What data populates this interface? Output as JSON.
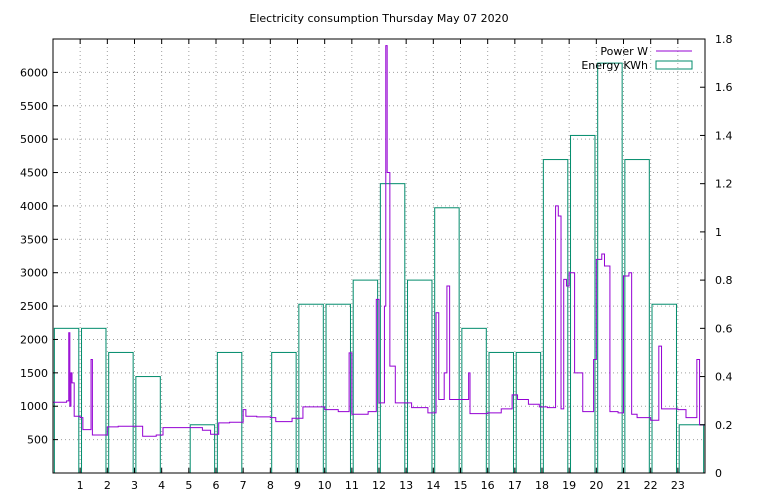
{
  "chart_data": {
    "type": "bar+line",
    "title": "Electricity consumption Thursday May 07 2020",
    "grid": true,
    "legend_position": "top-right",
    "x_axis": {
      "range": [
        0,
        24
      ],
      "ticks": [
        "1",
        "2",
        "3",
        "4",
        "5",
        "6",
        "7",
        "8",
        "9",
        "10",
        "11",
        "12",
        "13",
        "14",
        "15",
        "16",
        "17",
        "18",
        "19",
        "20",
        "21",
        "22",
        "23"
      ]
    },
    "y_left": {
      "range": [
        0,
        6500
      ],
      "ticks": [
        500,
        1000,
        1500,
        2000,
        2500,
        3000,
        3500,
        4000,
        4500,
        5000,
        5500,
        6000
      ],
      "tick_labels": [
        "500",
        "1000",
        "1500",
        "2000",
        "2500",
        "3000",
        "3500",
        "4000",
        "4500",
        "5000",
        "5500",
        "6000"
      ]
    },
    "y_right": {
      "range": [
        0,
        1.8
      ],
      "ticks": [
        0,
        0.2,
        0.4,
        0.6,
        0.8,
        1,
        1.2,
        1.4,
        1.6,
        1.8
      ],
      "tick_labels": [
        "0",
        "0.2",
        "0.4",
        "0.6",
        "0.8",
        "1",
        "1.2",
        "1.4",
        "1.6",
        "1.8"
      ]
    },
    "series": [
      {
        "name": "Power W",
        "axis": "left",
        "color": "#9400d3",
        "style": "steps",
        "points": [
          [
            0,
            1060
          ],
          [
            0.5,
            1080
          ],
          [
            0.58,
            2100
          ],
          [
            0.62,
            1000
          ],
          [
            0.66,
            1500
          ],
          [
            0.7,
            1350
          ],
          [
            0.78,
            850
          ],
          [
            1.0,
            830
          ],
          [
            1.1,
            650
          ],
          [
            1.4,
            1700
          ],
          [
            1.45,
            570
          ],
          [
            2.0,
            690
          ],
          [
            2.4,
            700
          ],
          [
            3.3,
            550
          ],
          [
            3.8,
            570
          ],
          [
            4.05,
            680
          ],
          [
            5.5,
            640
          ],
          [
            5.8,
            580
          ],
          [
            6.1,
            750
          ],
          [
            6.5,
            760
          ],
          [
            7.0,
            950
          ],
          [
            7.1,
            850
          ],
          [
            7.5,
            840
          ],
          [
            8.0,
            830
          ],
          [
            8.2,
            770
          ],
          [
            8.8,
            820
          ],
          [
            9.2,
            990
          ],
          [
            10.0,
            950
          ],
          [
            10.5,
            920
          ],
          [
            10.9,
            1800
          ],
          [
            11.0,
            880
          ],
          [
            11.6,
            920
          ],
          [
            11.9,
            2600
          ],
          [
            12.0,
            1050
          ],
          [
            12.2,
            2500
          ],
          [
            12.25,
            6400
          ],
          [
            12.3,
            4500
          ],
          [
            12.4,
            1600
          ],
          [
            12.6,
            1050
          ],
          [
            13.2,
            980
          ],
          [
            13.8,
            900
          ],
          [
            14.1,
            2400
          ],
          [
            14.2,
            1100
          ],
          [
            14.4,
            1500
          ],
          [
            14.5,
            2800
          ],
          [
            14.6,
            1100
          ],
          [
            15.3,
            1500
          ],
          [
            15.35,
            890
          ],
          [
            16.0,
            900
          ],
          [
            16.5,
            960
          ],
          [
            16.9,
            1170
          ],
          [
            17.1,
            1100
          ],
          [
            17.5,
            1030
          ],
          [
            17.9,
            990
          ],
          [
            18.2,
            980
          ],
          [
            18.5,
            4000
          ],
          [
            18.6,
            3850
          ],
          [
            18.7,
            960
          ],
          [
            18.8,
            2900
          ],
          [
            18.9,
            2800
          ],
          [
            19.0,
            3000
          ],
          [
            19.2,
            1500
          ],
          [
            19.5,
            920
          ],
          [
            19.9,
            1700
          ],
          [
            20.0,
            3200
          ],
          [
            20.2,
            3280
          ],
          [
            20.3,
            3100
          ],
          [
            20.5,
            920
          ],
          [
            20.8,
            900
          ],
          [
            21.0,
            2950
          ],
          [
            21.2,
            3000
          ],
          [
            21.3,
            880
          ],
          [
            21.5,
            830
          ],
          [
            22.0,
            790
          ],
          [
            22.3,
            1900
          ],
          [
            22.4,
            960
          ],
          [
            23.0,
            950
          ],
          [
            23.3,
            830
          ],
          [
            23.7,
            1700
          ],
          [
            23.8,
            720
          ],
          [
            24,
            720
          ]
        ]
      },
      {
        "name": "Energy KWh",
        "axis": "right",
        "color": "#008b6b",
        "style": "boxes",
        "bars": [
          [
            0,
            0.6
          ],
          [
            1,
            0.6
          ],
          [
            2,
            0.5
          ],
          [
            3,
            0.4
          ],
          [
            4,
            0
          ],
          [
            5,
            0.2
          ],
          [
            6,
            0.5
          ],
          [
            7,
            0
          ],
          [
            8,
            0.5
          ],
          [
            9,
            0.7
          ],
          [
            10,
            0.7
          ],
          [
            11,
            0.8
          ],
          [
            12,
            1.2
          ],
          [
            13,
            0.8
          ],
          [
            14,
            1.1
          ],
          [
            15,
            0.6
          ],
          [
            16,
            0.5
          ],
          [
            17,
            0.5
          ],
          [
            18,
            1.3
          ],
          [
            19,
            1.4
          ],
          [
            20,
            1.7
          ],
          [
            21,
            1.3
          ],
          [
            22,
            0.7
          ],
          [
            23,
            0.2
          ]
        ]
      }
    ]
  }
}
